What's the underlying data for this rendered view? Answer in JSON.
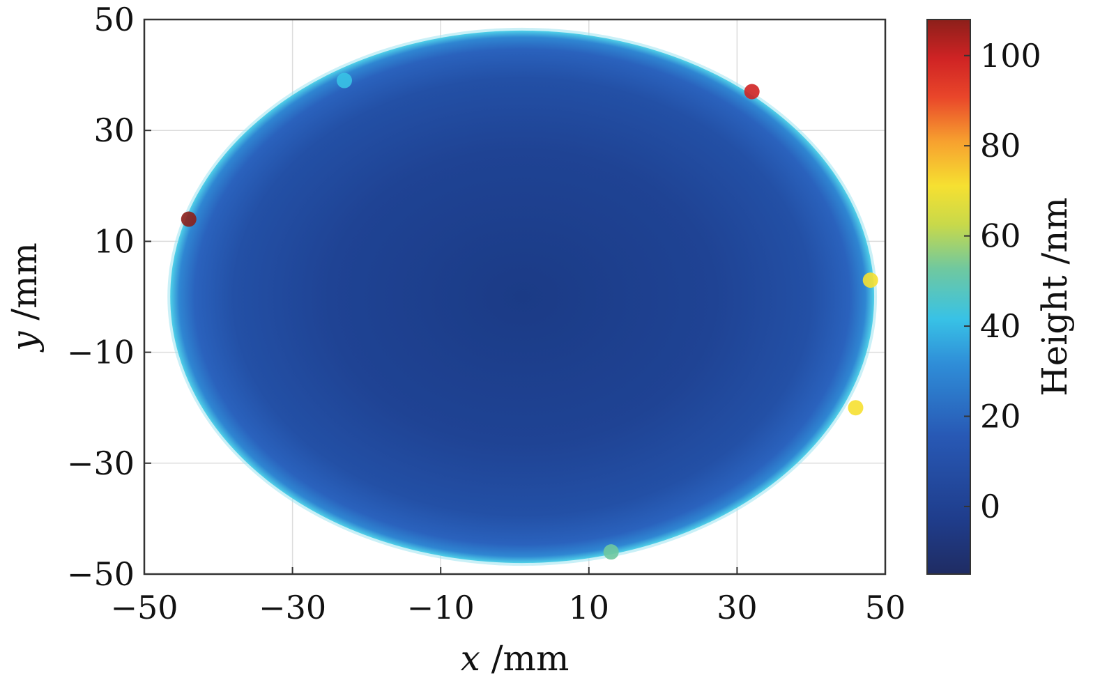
{
  "chart_data": {
    "type": "heatmap",
    "title": "",
    "xlabel": {
      "var": "x",
      "unit": " /mm"
    },
    "ylabel": {
      "var": "y",
      "unit": " /mm"
    },
    "xlim": [
      -50,
      50
    ],
    "ylim": [
      -50,
      50
    ],
    "x_ticks": [
      -50,
      -30,
      -10,
      10,
      30,
      50
    ],
    "y_ticks": [
      -50,
      -30,
      -10,
      10,
      30,
      50
    ],
    "x_tick_labels": [
      "−50",
      "−30",
      "−10",
      "10",
      "30",
      "50"
    ],
    "y_tick_labels": [
      "−50",
      "−30",
      "−10",
      "10",
      "30",
      "50"
    ],
    "grid": true,
    "surface": {
      "shape": "ellipse",
      "center": [
        1,
        0
      ],
      "semi_axes": [
        47.5,
        48
      ],
      "center_value": 2,
      "edge_value": 30,
      "features": [
        {
          "x": 32,
          "y": 37,
          "value": 95
        },
        {
          "x": -44,
          "y": 14,
          "value": 100
        },
        {
          "x": -23,
          "y": 39,
          "value": 40
        },
        {
          "x": 13,
          "y": -46,
          "value": 45
        },
        {
          "x": 48,
          "y": 3,
          "value": 70
        },
        {
          "x": 46,
          "y": -20,
          "value": 70
        }
      ]
    },
    "colorbar": {
      "label": "Height /nm",
      "range": [
        -15,
        108
      ],
      "ticks": [
        0,
        20,
        40,
        60,
        80,
        100
      ],
      "tick_labels": [
        "0",
        "20",
        "40",
        "60",
        "80",
        "100"
      ],
      "colormap": "jet"
    }
  }
}
